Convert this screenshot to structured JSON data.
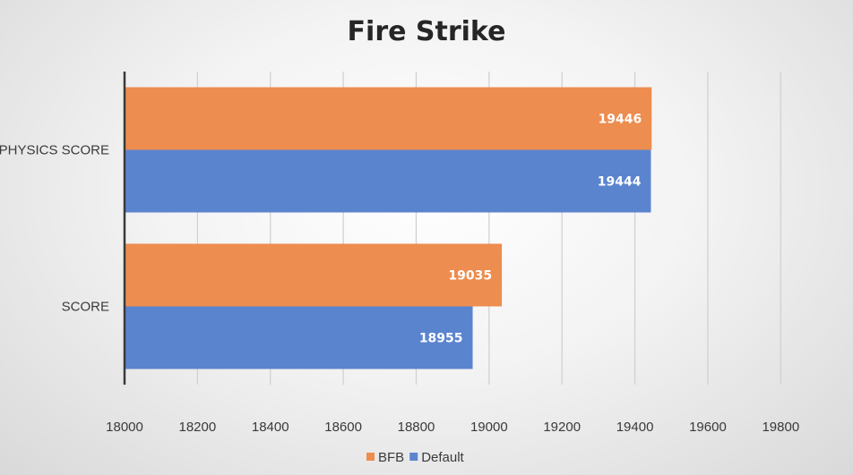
{
  "chart_data": {
    "type": "bar",
    "orientation": "horizontal",
    "title": "Fire Strike",
    "categories": [
      "PHYSICS SCORE",
      "SCORE"
    ],
    "series": [
      {
        "name": "BFB",
        "values": [
          19446,
          19035
        ],
        "color": "#ed8d4f"
      },
      {
        "name": "Default",
        "values": [
          19444,
          18955
        ],
        "color": "#5b84cf"
      }
    ],
    "xlim": [
      18000,
      19900
    ],
    "xticks": [
      18000,
      18200,
      18400,
      18600,
      18800,
      19000,
      19200,
      19400,
      19600,
      19800
    ],
    "xlabel": "",
    "ylabel": "",
    "grid": true,
    "legend_position": "bottom",
    "data_labels": true
  }
}
